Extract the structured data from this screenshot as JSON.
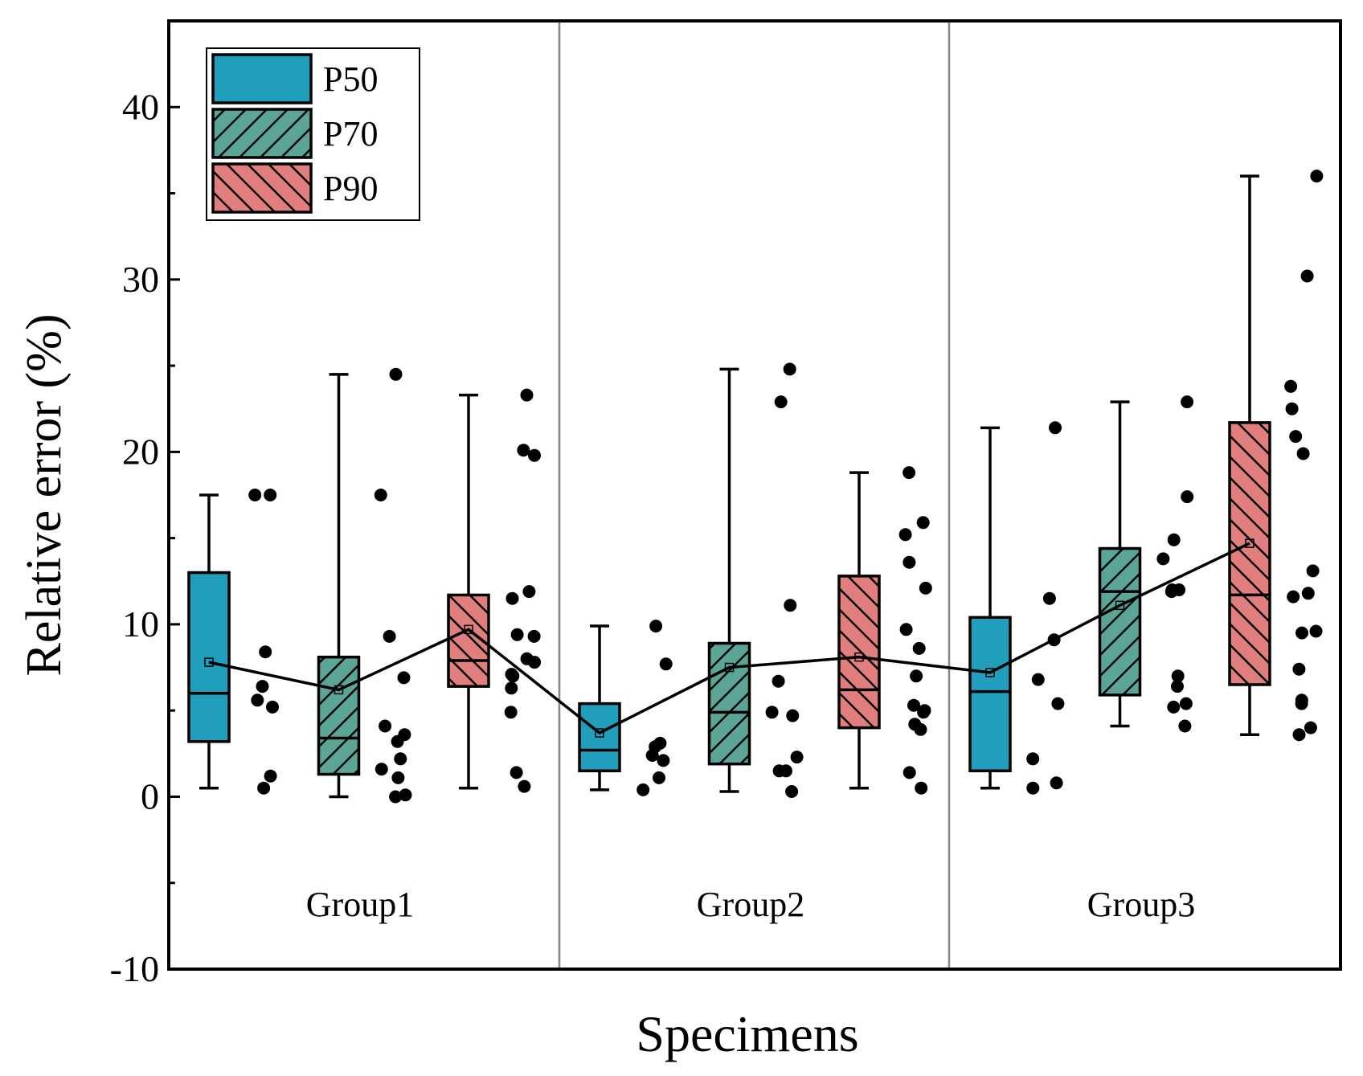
{
  "chart_data": {
    "type": "box",
    "xlabel": "Specimens",
    "ylabel": "Relative error (%)",
    "ylim": [
      -10,
      45
    ],
    "yticks": [
      -10,
      0,
      10,
      20,
      30,
      40
    ],
    "ytick_labels": [
      "-10",
      "0",
      "10",
      "20",
      "30",
      "40"
    ],
    "groups": [
      "Group1",
      "Group2",
      "Group3"
    ],
    "legend": {
      "position": "top-left",
      "entries": [
        {
          "key": "P50",
          "label": "P50",
          "color": "#219ebc",
          "hatch": "none"
        },
        {
          "key": "P70",
          "label": "P70",
          "color": "#5aa596",
          "hatch": "forward"
        },
        {
          "key": "P90",
          "label": "P90",
          "color": "#e07f7d",
          "hatch": "backward"
        }
      ]
    },
    "mean_line": {
      "color": "#000000"
    },
    "boxes": [
      {
        "group": "Group1",
        "series": "P50",
        "whisker_low": 0.5,
        "q1": 3.2,
        "median": 6.0,
        "q3": 13.0,
        "whisker_high": 17.5,
        "mean": 7.8,
        "points": [
          17.5,
          17.5,
          8.4,
          6.4,
          5.6,
          5.2,
          1.2,
          0.5
        ]
      },
      {
        "group": "Group1",
        "series": "P70",
        "whisker_low": 0.0,
        "q1": 1.3,
        "median": 3.4,
        "q3": 8.1,
        "whisker_high": 24.5,
        "mean": 6.2,
        "points": [
          24.5,
          17.5,
          9.3,
          6.9,
          4.1,
          3.6,
          3.2,
          2.2,
          1.6,
          1.1,
          0.1,
          0.0
        ]
      },
      {
        "group": "Group1",
        "series": "P90",
        "whisker_low": 0.5,
        "q1": 6.4,
        "median": 7.9,
        "q3": 11.7,
        "whisker_high": 23.3,
        "mean": 9.7,
        "points": [
          23.3,
          20.1,
          19.8,
          11.9,
          11.5,
          9.4,
          9.3,
          8.0,
          7.8,
          7.1,
          7.0,
          6.3,
          4.9,
          1.4,
          0.6
        ]
      },
      {
        "group": "Group2",
        "series": "P50",
        "whisker_low": 0.4,
        "q1": 1.5,
        "median": 2.7,
        "q3": 5.4,
        "whisker_high": 9.9,
        "mean": 3.7,
        "points": [
          9.9,
          7.7,
          3.1,
          2.9,
          2.4,
          2.1,
          1.1,
          0.4
        ]
      },
      {
        "group": "Group2",
        "series": "P70",
        "whisker_low": 0.3,
        "q1": 1.9,
        "median": 4.9,
        "q3": 8.9,
        "whisker_high": 24.8,
        "mean": 7.5,
        "points": [
          24.8,
          22.9,
          11.1,
          6.7,
          4.9,
          4.7,
          2.3,
          1.5,
          1.5,
          0.3
        ]
      },
      {
        "group": "Group2",
        "series": "P90",
        "whisker_low": 0.5,
        "q1": 4.0,
        "median": 6.2,
        "q3": 12.8,
        "whisker_high": 18.8,
        "mean": 8.1,
        "points": [
          18.8,
          15.9,
          15.2,
          13.6,
          12.1,
          9.7,
          8.6,
          7.0,
          5.3,
          5.0,
          4.9,
          4.2,
          3.9,
          1.4,
          0.5
        ]
      },
      {
        "group": "Group3",
        "series": "P50",
        "whisker_low": 0.5,
        "q1": 1.5,
        "median": 6.1,
        "q3": 10.4,
        "whisker_high": 21.4,
        "mean": 7.2,
        "points": [
          21.4,
          11.5,
          9.1,
          6.8,
          5.4,
          2.2,
          0.8,
          0.5
        ]
      },
      {
        "group": "Group3",
        "series": "P70",
        "whisker_low": 4.1,
        "q1": 5.9,
        "median": 11.9,
        "q3": 14.4,
        "whisker_high": 22.9,
        "mean": 11.1,
        "points": [
          22.9,
          17.4,
          14.9,
          13.8,
          12.0,
          12.0,
          11.9,
          7.0,
          6.4,
          5.4,
          5.2,
          4.1
        ]
      },
      {
        "group": "Group3",
        "series": "P90",
        "whisker_low": 3.6,
        "q1": 6.5,
        "median": 11.7,
        "q3": 21.7,
        "whisker_high": 36.0,
        "mean": 14.7,
        "points": [
          36.0,
          30.2,
          23.8,
          22.5,
          20.9,
          19.9,
          13.1,
          11.8,
          11.6,
          9.6,
          9.5,
          7.4,
          5.6,
          5.4,
          4.0,
          3.6
        ]
      }
    ]
  }
}
